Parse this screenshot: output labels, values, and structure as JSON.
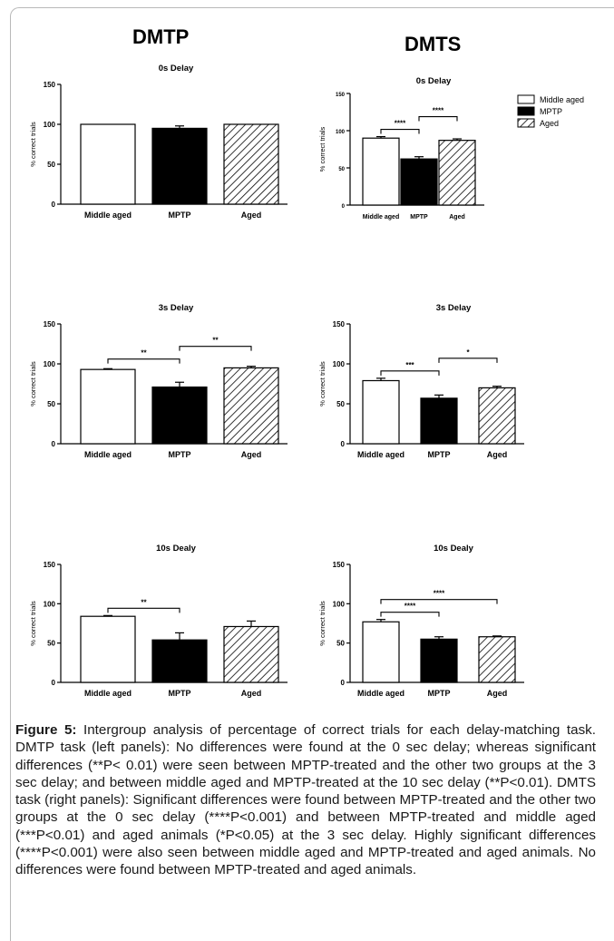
{
  "headings": {
    "left": "DMTP",
    "right": "DMTS"
  },
  "legend": [
    {
      "label": "Middle aged",
      "fill": "white"
    },
    {
      "label": "MPTP",
      "fill": "black"
    },
    {
      "label": "Aged",
      "fill": "hatch"
    }
  ],
  "colors": {
    "bar_stroke": "#000000",
    "black_bar": "#000000",
    "frame": "#b9b9b9"
  },
  "caption": {
    "label": "Figure 5:",
    "text": " Intergroup analysis of percentage of correct trials for each delay-matching task. DMTP task (left panels): No differences were found at the 0 sec delay; whereas significant differences (**P< 0.01) were seen between MPTP-treated and the other two groups at the 3 sec delay; and between middle aged and MPTP-treated at the 10 sec delay (**P<0.01). DMTS task (right panels): Significant differences were found between MPTP-treated and the other two groups at the 0 sec delay (****P<0.001) and between MPTP-treated and middle aged (***P<0.01) and aged animals (*P<0.05) at the 3 sec delay. Highly significant differences (****P<0.001) were also seen between middle aged and MPTP-treated and aged animals. No differences were found between MPTP-treated and aged animals."
  },
  "chart_data": [
    {
      "type": "bar",
      "title": "0s Delay",
      "ylabel": "% correct trials",
      "ylim": [
        0,
        150
      ],
      "yticks": [
        "0",
        "50",
        "100",
        "150"
      ],
      "categories": [
        "Middle aged",
        "MPTP",
        "Aged"
      ],
      "values": [
        100,
        95,
        100
      ],
      "errors": [
        0,
        3,
        0
      ],
      "fills": [
        "white",
        "black",
        "hatch"
      ],
      "significance": []
    },
    {
      "type": "bar",
      "title": "0s Delay",
      "ylabel": "% correct trials",
      "ylim": [
        0,
        150
      ],
      "yticks": [
        "0",
        "50",
        "100",
        "150"
      ],
      "categories": [
        "Middle aged",
        "MPTP",
        "Aged"
      ],
      "values": [
        90,
        62,
        87
      ],
      "errors": [
        2,
        3,
        2
      ],
      "fills": [
        "white",
        "black",
        "hatch"
      ],
      "legend": true,
      "significance": [
        {
          "from": 0,
          "to": 1,
          "label": "****"
        },
        {
          "from": 1,
          "to": 2,
          "label": "****"
        }
      ]
    },
    {
      "type": "bar",
      "title": "3s Delay",
      "ylabel": "% correct trials",
      "ylim": [
        0,
        150
      ],
      "yticks": [
        "0",
        "50",
        "100",
        "150"
      ],
      "categories": [
        "Middle aged",
        "MPTP",
        "Aged"
      ],
      "values": [
        93,
        71,
        95
      ],
      "errors": [
        1,
        6,
        2
      ],
      "fills": [
        "white",
        "black",
        "hatch"
      ],
      "significance": [
        {
          "from": 0,
          "to": 1,
          "label": "**"
        },
        {
          "from": 1,
          "to": 2,
          "label": "**"
        }
      ]
    },
    {
      "type": "bar",
      "title": "3s Delay",
      "ylabel": "% correct trials",
      "ylim": [
        0,
        150
      ],
      "yticks": [
        "0",
        "50",
        "100",
        "150"
      ],
      "categories": [
        "Middle aged",
        "MPTP",
        "Aged"
      ],
      "values": [
        79,
        57,
        70
      ],
      "errors": [
        3,
        4,
        2
      ],
      "fills": [
        "white",
        "black",
        "hatch"
      ],
      "significance": [
        {
          "from": 0,
          "to": 1,
          "label": "***"
        },
        {
          "from": 1,
          "to": 2,
          "label": "*"
        }
      ]
    },
    {
      "type": "bar",
      "title": "10s Dealy",
      "ylabel": "% correct trials",
      "ylim": [
        0,
        150
      ],
      "yticks": [
        "0",
        "50",
        "100",
        "150"
      ],
      "categories": [
        "Middle aged",
        "MPTP",
        "Aged"
      ],
      "values": [
        84,
        54,
        71
      ],
      "errors": [
        1,
        9,
        7
      ],
      "fills": [
        "white",
        "black",
        "hatch"
      ],
      "significance": [
        {
          "from": 0,
          "to": 1,
          "label": "**"
        }
      ]
    },
    {
      "type": "bar",
      "title": "10s Dealy",
      "ylabel": "% correct trials",
      "ylim": [
        0,
        150
      ],
      "yticks": [
        "0",
        "50",
        "100",
        "150"
      ],
      "categories": [
        "Middle aged",
        "MPTP",
        "Aged"
      ],
      "values": [
        77,
        55,
        58
      ],
      "errors": [
        3,
        3,
        1
      ],
      "fills": [
        "white",
        "black",
        "hatch"
      ],
      "significance": [
        {
          "from": 0,
          "to": 1,
          "label": "****"
        },
        {
          "from": 0,
          "to": 2,
          "label": "****"
        }
      ]
    }
  ]
}
